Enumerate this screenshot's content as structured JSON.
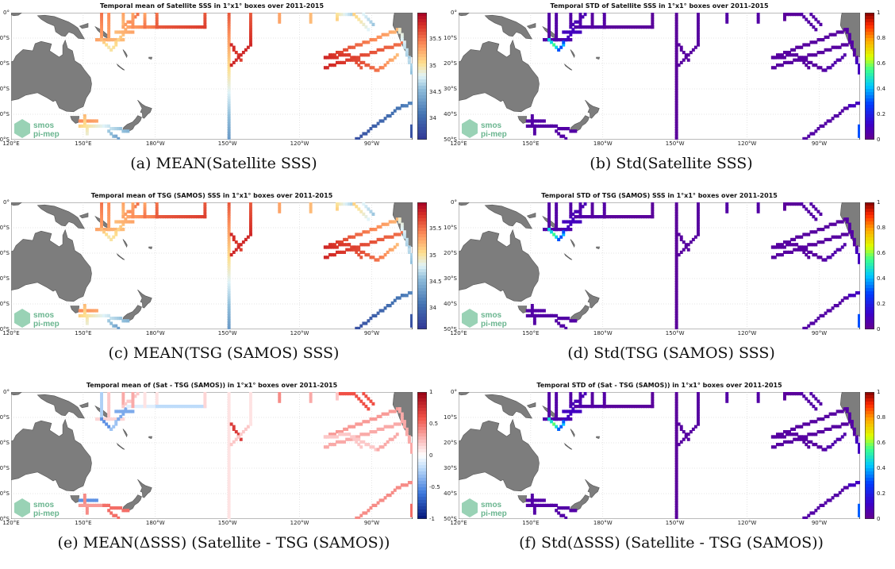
{
  "longitude_ticks": [
    "120°E",
    "150°E",
    "180°W",
    "150°W",
    "120°W",
    "90°W"
  ],
  "latitude_ticks": [
    "0°",
    "10°S",
    "20°S",
    "30°S",
    "40°S",
    "50°S"
  ],
  "logo": {
    "line1": "smos",
    "line2": "pi-mep"
  },
  "panels": [
    {
      "title": "Temporal mean of Satellite SSS in 1°x1° boxes over 2011-2015",
      "caption": "(a) MEAN(Satellite SSS)",
      "colorbar": {
        "scheme": "diverging-red-blue",
        "range": [
          33.6,
          36
        ],
        "ticks": [
          "35.5",
          "35",
          "34.5",
          "34"
        ]
      },
      "variable": "mean-sss"
    },
    {
      "title": "Temporal STD of Satellite SSS in 1°x1° boxes over 2011-2015",
      "caption": "(b) Std(Satellite SSS)",
      "colorbar": {
        "scheme": "jet",
        "range": [
          0,
          1
        ],
        "ticks": [
          "1",
          "0.8",
          "0.6",
          "0.4",
          "0.2",
          "0"
        ]
      },
      "variable": "std-sss"
    },
    {
      "title": "Temporal mean of TSG (SAMOS) SSS in 1°x1° boxes over 2011-2015",
      "caption": "(c) MEAN(TSG (SAMOS) SSS)",
      "colorbar": {
        "scheme": "diverging-red-blue",
        "range": [
          33.6,
          36
        ],
        "ticks": [
          "35.5",
          "35",
          "34.5",
          "34"
        ]
      },
      "variable": "mean-sss"
    },
    {
      "title": "Temporal STD of TSG (SAMOS) SSS in 1°x1° boxes over 2011-2015",
      "caption": "(d) Std(TSG (SAMOS) SSS)",
      "colorbar": {
        "scheme": "jet",
        "range": [
          0,
          1
        ],
        "ticks": [
          "1",
          "0.8",
          "0.6",
          "0.4",
          "0.2",
          "0"
        ]
      },
      "variable": "std-sss"
    },
    {
      "title": "Temporal mean of (Sat - TSG (SAMOS)) in 1°x1° boxes over 2011-2015",
      "caption": "(e) MEAN(ΔSSS) (Satellite - TSG (SAMOS))",
      "colorbar": {
        "scheme": "diverging-red-white-blue",
        "range": [
          -1,
          1
        ],
        "ticks": [
          "1",
          "0.5",
          "0",
          "-0.5",
          "-1"
        ]
      },
      "variable": "mean-diff"
    },
    {
      "title": "Temporal STD of (Sat - TSG (SAMOS)) in 1°x1° boxes over 2011-2015",
      "caption": "(f) Std(ΔSSS) (Satellite - TSG (SAMOS))",
      "colorbar": {
        "scheme": "jet",
        "range": [
          0,
          1
        ],
        "ticks": [
          "1",
          "0.8",
          "0.6",
          "0.4",
          "0.2",
          "0"
        ]
      },
      "variable": "std-diff"
    }
  ]
}
